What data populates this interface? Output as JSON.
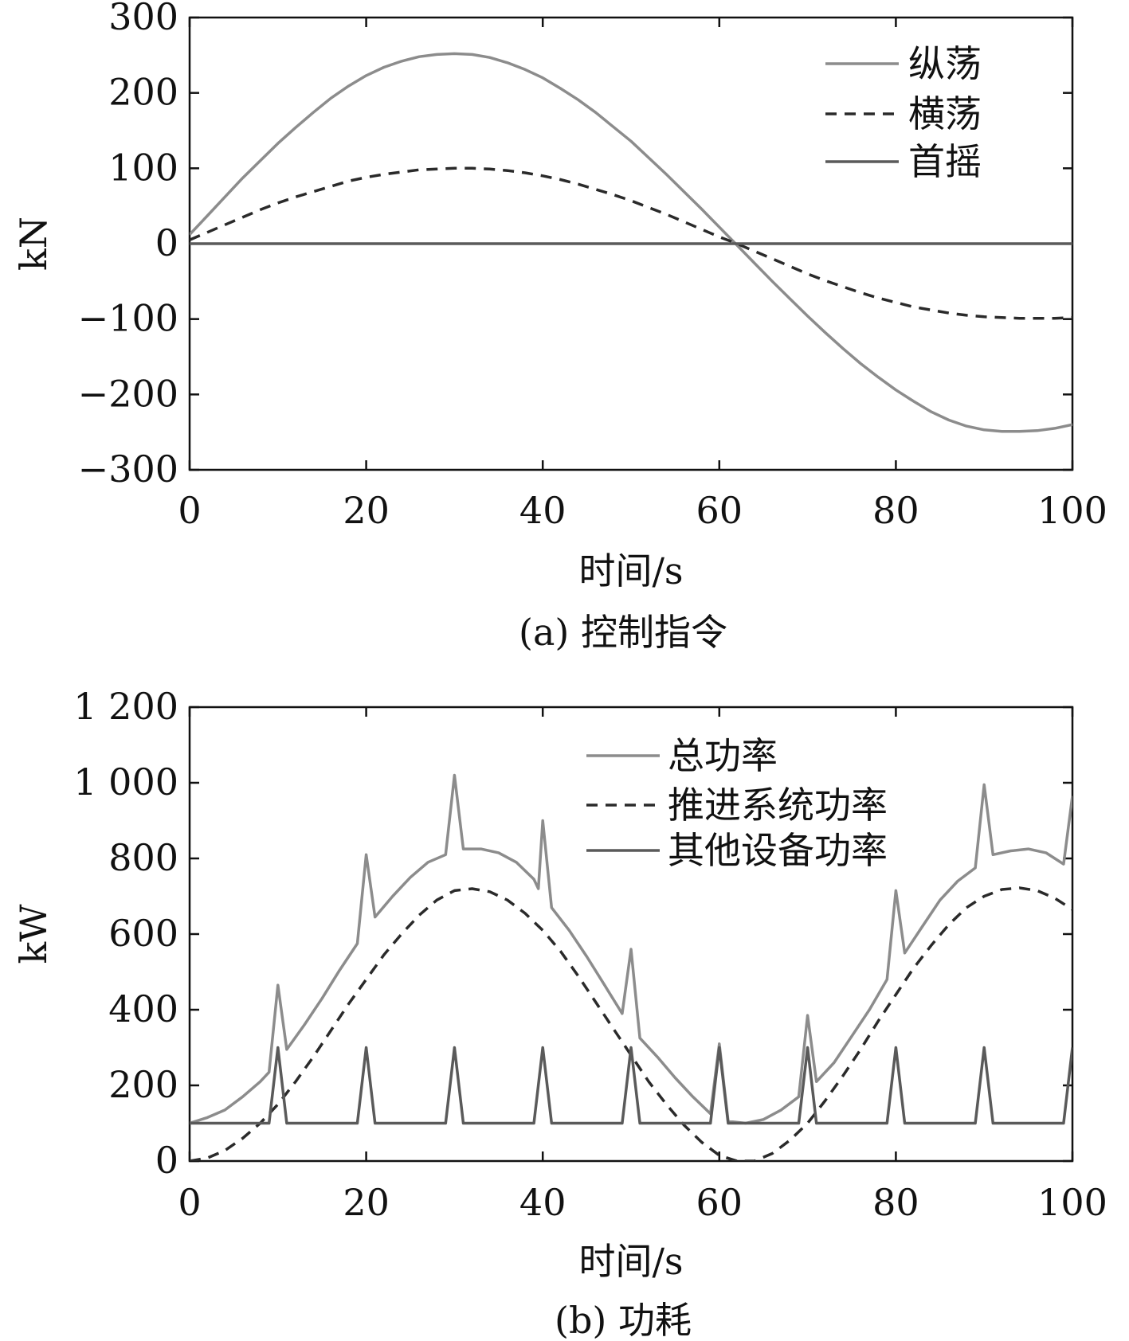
{
  "chart_data": [
    {
      "type": "line",
      "caption": "(a) 控制指令",
      "xlabel": "时间/s",
      "ylabel": "kN",
      "xlim": [
        0,
        100
      ],
      "ylim": [
        -300,
        300
      ],
      "xticks": [
        0,
        20,
        40,
        60,
        80,
        100
      ],
      "yticks": [
        300,
        200,
        100,
        0,
        -100,
        -200,
        -300
      ],
      "ytick_labels": [
        "300",
        "200",
        "100",
        "0",
        "−100",
        "−200",
        "−300"
      ],
      "grid": false,
      "legend_position": "top-right",
      "x": [
        0,
        2,
        4,
        6,
        8,
        10,
        12,
        14,
        16,
        18,
        20,
        22,
        24,
        26,
        28,
        30,
        32,
        34,
        36,
        38,
        40,
        42,
        44,
        46,
        48,
        50,
        52,
        54,
        56,
        58,
        60,
        62,
        64,
        66,
        68,
        70,
        72,
        74,
        76,
        78,
        80,
        82,
        84,
        86,
        88,
        90,
        92,
        94,
        96,
        98,
        100
      ],
      "series": [
        {
          "name": "纵荡",
          "color": "#8c8c8c",
          "dash": "solid",
          "values": [
            12,
            37,
            62,
            87,
            110,
            133,
            154,
            174,
            193,
            209,
            223,
            234,
            242,
            248,
            251,
            252,
            251,
            247,
            240,
            231,
            220,
            206,
            191,
            174,
            155,
            136,
            114,
            92,
            69,
            46,
            22,
            -2,
            -26,
            -50,
            -73,
            -96,
            -118,
            -139,
            -159,
            -177,
            -194,
            -209,
            -223,
            -234,
            -242,
            -247,
            -249,
            -249,
            -248,
            -245,
            -240
          ]
        },
        {
          "name": "横荡",
          "color": "#2a2a2a",
          "dash": "dashed",
          "values": [
            5,
            15,
            25,
            35,
            45,
            54,
            62,
            69,
            76,
            83,
            88,
            92,
            95,
            98,
            99,
            100,
            100,
            99,
            97,
            94,
            90,
            85,
            79,
            72,
            65,
            57,
            48,
            39,
            29,
            19,
            9,
            0,
            -10,
            -20,
            -30,
            -40,
            -49,
            -57,
            -65,
            -72,
            -78,
            -84,
            -88,
            -92,
            -95,
            -97,
            -98,
            -99,
            -99,
            -99,
            -98
          ]
        },
        {
          "name": "首摇",
          "color": "#5a5a5a",
          "dash": "solid",
          "values": [
            0,
            0,
            0,
            0,
            0,
            0,
            0,
            0,
            0,
            0,
            0,
            0,
            0,
            0,
            0,
            0,
            0,
            0,
            0,
            0,
            0,
            0,
            0,
            0,
            0,
            0,
            0,
            0,
            0,
            0,
            0,
            0,
            0,
            0,
            0,
            0,
            0,
            0,
            0,
            0,
            0,
            0,
            0,
            0,
            0,
            0,
            0,
            0,
            0,
            0,
            0
          ]
        }
      ]
    },
    {
      "type": "line",
      "caption": "(b) 功耗",
      "xlabel": "时间/s",
      "ylabel": "kW",
      "xlim": [
        0,
        100
      ],
      "ylim": [
        0,
        1200
      ],
      "xticks": [
        0,
        20,
        40,
        60,
        80,
        100
      ],
      "yticks": [
        1200,
        1000,
        800,
        600,
        400,
        200,
        0
      ],
      "ytick_labels": [
        "1 200",
        "1 000",
        "800",
        "600",
        "400",
        "200",
        "0"
      ],
      "grid": false,
      "legend_position": "top-right",
      "series": [
        {
          "name": "总功率",
          "color": "#8c8c8c",
          "dash": "solid",
          "points": [
            [
              0,
              100
            ],
            [
              2,
              115
            ],
            [
              4,
              135
            ],
            [
              6,
              170
            ],
            [
              8,
              210
            ],
            [
              9,
              235
            ],
            [
              10,
              465
            ],
            [
              11,
              295
            ],
            [
              13,
              360
            ],
            [
              15,
              430
            ],
            [
              17,
              505
            ],
            [
              19,
              575
            ],
            [
              20,
              810
            ],
            [
              21,
              645
            ],
            [
              23,
              700
            ],
            [
              25,
              750
            ],
            [
              27,
              790
            ],
            [
              29,
              810
            ],
            [
              30,
              1020
            ],
            [
              31,
              825
            ],
            [
              33,
              825
            ],
            [
              35,
              815
            ],
            [
              37,
              790
            ],
            [
              39,
              745
            ],
            [
              39.5,
              720
            ],
            [
              40,
              900
            ],
            [
              41,
              670
            ],
            [
              43,
              610
            ],
            [
              45,
              540
            ],
            [
              47,
              465
            ],
            [
              49,
              390
            ],
            [
              50,
              560
            ],
            [
              51,
              325
            ],
            [
              53,
              275
            ],
            [
              55,
              220
            ],
            [
              57,
              170
            ],
            [
              59,
              125
            ],
            [
              60,
              310
            ],
            [
              61,
              105
            ],
            [
              63,
              100
            ],
            [
              65,
              110
            ],
            [
              67,
              135
            ],
            [
              69,
              170
            ],
            [
              70,
              385
            ],
            [
              71,
              210
            ],
            [
              73,
              260
            ],
            [
              75,
              330
            ],
            [
              77,
              400
            ],
            [
              79,
              480
            ],
            [
              80,
              715
            ],
            [
              81,
              550
            ],
            [
              83,
              620
            ],
            [
              85,
              690
            ],
            [
              87,
              740
            ],
            [
              89,
              775
            ],
            [
              90,
              995
            ],
            [
              91,
              810
            ],
            [
              93,
              820
            ],
            [
              95,
              825
            ],
            [
              97,
              815
            ],
            [
              99,
              785
            ],
            [
              100,
              965
            ]
          ]
        },
        {
          "name": "推进系统功率",
          "color": "#2a2a2a",
          "dash": "dashed",
          "points": [
            [
              0,
              0
            ],
            [
              2,
              8
            ],
            [
              4,
              28
            ],
            [
              6,
              60
            ],
            [
              8,
              100
            ],
            [
              10,
              150
            ],
            [
              12,
              210
            ],
            [
              14,
              275
            ],
            [
              16,
              345
            ],
            [
              18,
              415
            ],
            [
              20,
              480
            ],
            [
              22,
              545
            ],
            [
              24,
              600
            ],
            [
              26,
              650
            ],
            [
              28,
              690
            ],
            [
              30,
              715
            ],
            [
              32,
              720
            ],
            [
              34,
              712
            ],
            [
              36,
              690
            ],
            [
              38,
              655
            ],
            [
              40,
              610
            ],
            [
              42,
              555
            ],
            [
              44,
              490
            ],
            [
              46,
              420
            ],
            [
              48,
              350
            ],
            [
              50,
              280
            ],
            [
              52,
              210
            ],
            [
              54,
              150
            ],
            [
              56,
              95
            ],
            [
              58,
              50
            ],
            [
              60,
              15
            ],
            [
              62,
              0
            ],
            [
              64,
              0
            ],
            [
              66,
              20
            ],
            [
              68,
              55
            ],
            [
              70,
              100
            ],
            [
              72,
              160
            ],
            [
              74,
              225
            ],
            [
              76,
              295
            ],
            [
              78,
              370
            ],
            [
              80,
              440
            ],
            [
              82,
              510
            ],
            [
              84,
              570
            ],
            [
              86,
              625
            ],
            [
              88,
              670
            ],
            [
              90,
              700
            ],
            [
              92,
              718
            ],
            [
              94,
              722
            ],
            [
              96,
              715
            ],
            [
              98,
              695
            ],
            [
              100,
              665
            ]
          ]
        },
        {
          "name": "其他设备功率",
          "color": "#5a5a5a",
          "dash": "solid",
          "points": [
            [
              0,
              100
            ],
            [
              9,
              100
            ],
            [
              10,
              300
            ],
            [
              11,
              100
            ],
            [
              19,
              100
            ],
            [
              20,
              300
            ],
            [
              21,
              100
            ],
            [
              29,
              100
            ],
            [
              30,
              300
            ],
            [
              31,
              100
            ],
            [
              39,
              100
            ],
            [
              40,
              300
            ],
            [
              41,
              100
            ],
            [
              49,
              100
            ],
            [
              50,
              300
            ],
            [
              51,
              100
            ],
            [
              59,
              100
            ],
            [
              60,
              300
            ],
            [
              61,
              100
            ],
            [
              69,
              100
            ],
            [
              70,
              300
            ],
            [
              71,
              100
            ],
            [
              79,
              100
            ],
            [
              80,
              300
            ],
            [
              81,
              100
            ],
            [
              89,
              100
            ],
            [
              90,
              300
            ],
            [
              91,
              100
            ],
            [
              99,
              100
            ],
            [
              100,
              300
            ]
          ]
        }
      ]
    }
  ]
}
